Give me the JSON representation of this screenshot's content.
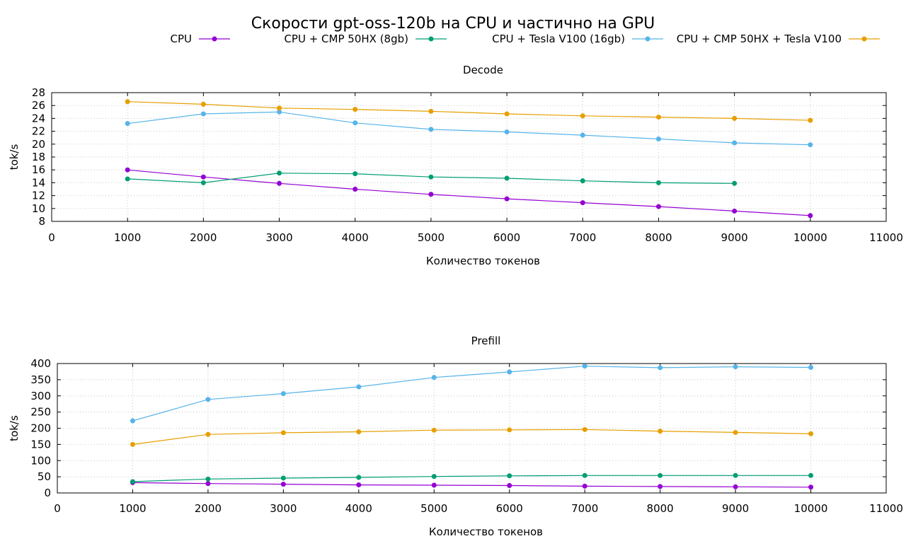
{
  "title": "Скорости gpt-oss-120b на CPU и частично на GPU",
  "legend": [
    {
      "label": "CPU",
      "color": "#9400d3"
    },
    {
      "label": "CPU + CMP 50HX (8gb)",
      "color": "#009e73"
    },
    {
      "label": "CPU + Tesla V100 (16gb)",
      "color": "#56b4e9"
    },
    {
      "label": "CPU + CMP 50HX + Tesla V100",
      "color": "#e69f00"
    }
  ],
  "chart_data": [
    {
      "type": "line",
      "title": "Decode",
      "xlabel": "Количество токенов",
      "ylabel": "tok/s",
      "xlim": [
        0,
        11000
      ],
      "ylim": [
        8,
        28
      ],
      "xticks": [
        0,
        1000,
        2000,
        3000,
        4000,
        5000,
        6000,
        7000,
        8000,
        9000,
        10000,
        11000
      ],
      "yticks": [
        8,
        10,
        12,
        14,
        16,
        18,
        20,
        22,
        24,
        26,
        28
      ],
      "grid": true,
      "series": [
        {
          "name": "CPU",
          "color": "#9400d3",
          "x": [
            1000,
            2000,
            3000,
            4000,
            5000,
            6000,
            7000,
            8000,
            9000,
            10000
          ],
          "y": [
            16.0,
            14.9,
            13.9,
            13.0,
            12.2,
            11.5,
            10.9,
            10.3,
            9.6,
            8.9
          ]
        },
        {
          "name": "CPU + CMP 50HX (8gb)",
          "color": "#009e73",
          "x": [
            1000,
            2000,
            3000,
            4000,
            5000,
            6000,
            7000,
            8000,
            9000
          ],
          "y": [
            14.6,
            14.0,
            15.5,
            15.4,
            14.9,
            14.7,
            14.3,
            14.0,
            13.9
          ]
        },
        {
          "name": "CPU + Tesla V100 (16gb)",
          "color": "#56b4e9",
          "x": [
            1000,
            2000,
            3000,
            4000,
            5000,
            6000,
            7000,
            8000,
            9000,
            10000
          ],
          "y": [
            23.2,
            24.7,
            25.0,
            23.3,
            22.3,
            21.9,
            21.4,
            20.8,
            20.2,
            19.9
          ]
        },
        {
          "name": "CPU + CMP 50HX + Tesla V100",
          "color": "#e69f00",
          "x": [
            1000,
            2000,
            3000,
            4000,
            5000,
            6000,
            7000,
            8000,
            9000,
            10000
          ],
          "y": [
            26.6,
            26.2,
            25.6,
            25.4,
            25.1,
            24.7,
            24.4,
            24.2,
            24.0,
            23.7
          ]
        }
      ]
    },
    {
      "type": "line",
      "title": "Prefill",
      "xlabel": "Количество токенов",
      "ylabel": "tok/s",
      "xlim": [
        0,
        11000
      ],
      "ylim": [
        0,
        400
      ],
      "xticks": [
        0,
        1000,
        2000,
        3000,
        4000,
        5000,
        6000,
        7000,
        8000,
        9000,
        10000,
        11000
      ],
      "yticks": [
        0,
        50,
        100,
        150,
        200,
        250,
        300,
        350,
        400
      ],
      "grid": true,
      "series": [
        {
          "name": "CPU",
          "color": "#9400d3",
          "x": [
            1000,
            2000,
            3000,
            4000,
            5000,
            6000,
            7000,
            8000,
            9000,
            10000
          ],
          "y": [
            32,
            29,
            27,
            25,
            24,
            23,
            21,
            20,
            19,
            18
          ]
        },
        {
          "name": "CPU + CMP 50HX (8gb)",
          "color": "#009e73",
          "x": [
            1000,
            2000,
            3000,
            4000,
            5000,
            6000,
            7000,
            8000,
            9000,
            10000
          ],
          "y": [
            35,
            43,
            46,
            48,
            51,
            53,
            54,
            54,
            54,
            54
          ]
        },
        {
          "name": "CPU + Tesla V100 (16gb)",
          "color": "#56b4e9",
          "x": [
            1000,
            2000,
            3000,
            4000,
            5000,
            6000,
            7000,
            8000,
            9000,
            10000
          ],
          "y": [
            223,
            289,
            307,
            328,
            357,
            374,
            392,
            387,
            390,
            388
          ]
        },
        {
          "name": "CPU + CMP 50HX + Tesla V100",
          "color": "#e69f00",
          "x": [
            1000,
            2000,
            3000,
            4000,
            5000,
            6000,
            7000,
            8000,
            9000,
            10000
          ],
          "y": [
            150,
            181,
            186,
            189,
            194,
            195,
            196,
            191,
            187,
            183
          ]
        }
      ]
    }
  ]
}
